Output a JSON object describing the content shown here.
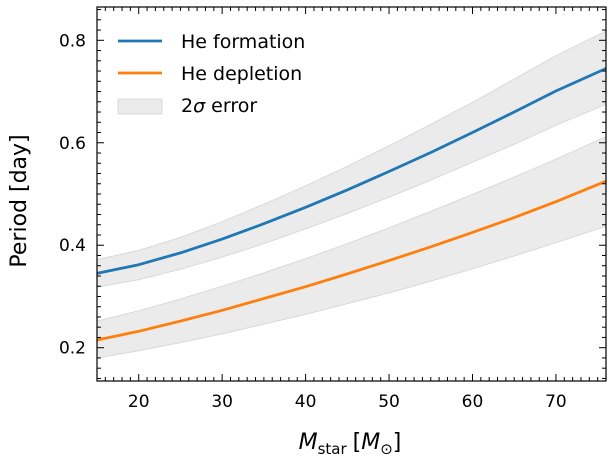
{
  "chart_data": {
    "type": "line",
    "xlabel_main": "M",
    "xlabel_sub": "star",
    "xlabel_unit_open": "[",
    "xlabel_unit_main": "M",
    "xlabel_unit_sub": "⊙",
    "xlabel_unit_close": "]",
    "ylabel": "Period [day]",
    "xlim": [
      15,
      76
    ],
    "ylim": [
      0.135,
      0.865
    ],
    "xticks": [
      20,
      30,
      40,
      50,
      60,
      70
    ],
    "yticks": [
      0.2,
      0.4,
      0.6,
      0.8
    ],
    "xtick_labels": [
      "20",
      "30",
      "40",
      "50",
      "60",
      "70"
    ],
    "ytick_labels": [
      "0.2",
      "0.4",
      "0.6",
      "0.8"
    ],
    "grid": false,
    "legend_position": "top-left",
    "legend": {
      "formation": "He formation",
      "depletion": "He depletion",
      "error_prefix": "2",
      "error_sigma": "σ",
      "error_suffix": " error"
    },
    "series": [
      {
        "name": "He formation",
        "color": "#1f77b4",
        "x": [
          15,
          20,
          25,
          30,
          35,
          40,
          45,
          50,
          55,
          60,
          65,
          70,
          76
        ],
        "y": [
          0.345,
          0.362,
          0.385,
          0.412,
          0.442,
          0.474,
          0.508,
          0.544,
          0.581,
          0.62,
          0.66,
          0.701,
          0.745
        ],
        "band_lower": [
          0.318,
          0.333,
          0.353,
          0.377,
          0.403,
          0.432,
          0.462,
          0.494,
          0.527,
          0.562,
          0.597,
          0.634,
          0.675
        ],
        "band_upper": [
          0.372,
          0.39,
          0.415,
          0.446,
          0.48,
          0.516,
          0.554,
          0.594,
          0.636,
          0.679,
          0.724,
          0.77,
          0.818
        ]
      },
      {
        "name": "He depletion",
        "color": "#ff7f0e",
        "x": [
          15,
          20,
          25,
          30,
          35,
          40,
          45,
          50,
          55,
          60,
          65,
          70,
          76
        ],
        "y": [
          0.215,
          0.232,
          0.252,
          0.273,
          0.296,
          0.319,
          0.344,
          0.37,
          0.397,
          0.425,
          0.454,
          0.485,
          0.525
        ],
        "band_lower": [
          0.18,
          0.194,
          0.21,
          0.227,
          0.246,
          0.265,
          0.286,
          0.307,
          0.33,
          0.354,
          0.379,
          0.405,
          0.437
        ],
        "band_upper": [
          0.252,
          0.272,
          0.295,
          0.32,
          0.346,
          0.374,
          0.403,
          0.434,
          0.466,
          0.499,
          0.533,
          0.568,
          0.612
        ]
      }
    ],
    "band_color": "#ebebeb",
    "band_edge_color": "#d9d9d9"
  }
}
